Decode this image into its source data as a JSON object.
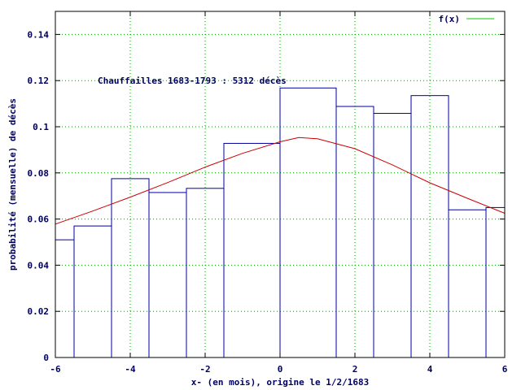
{
  "chart_data": {
    "type": "bar",
    "annotation": "Chauffailles 1683-1793 : 5312 décès",
    "xlabel": "x- (en mois), origine le 1/2/1683",
    "ylabel": "probabilité (mensuelle) de décès",
    "xlim": [
      -6,
      6
    ],
    "ylim": [
      0,
      0.15
    ],
    "x_ticks": [
      -6,
      -4,
      -2,
      0,
      2,
      4,
      6
    ],
    "y_ticks": [
      0,
      0.02,
      0.04,
      0.06,
      0.08,
      0.1,
      0.12,
      0.14
    ],
    "grid": true,
    "legend_position": "top-right",
    "bars": [
      {
        "x0": -6.0,
        "x1": -5.5,
        "value": 0.051
      },
      {
        "x0": -5.5,
        "x1": -4.5,
        "value": 0.057
      },
      {
        "x0": -4.5,
        "x1": -3.5,
        "value": 0.0775
      },
      {
        "x0": -3.5,
        "x1": -2.5,
        "value": 0.0715
      },
      {
        "x0": -2.5,
        "x1": -1.5,
        "value": 0.0733
      },
      {
        "x0": -1.5,
        "x1": 0.0,
        "value": 0.0928
      },
      {
        "x0": 0.0,
        "x1": 1.5,
        "value": 0.1168
      },
      {
        "x0": 1.5,
        "x1": 2.5,
        "value": 0.1088
      },
      {
        "x0": 2.5,
        "x1": 3.5,
        "value": 0.1058
      },
      {
        "x0": 3.5,
        "x1": 4.5,
        "value": 0.1135
      },
      {
        "x0": 4.5,
        "x1": 5.5,
        "value": 0.064
      },
      {
        "x0": 5.5,
        "x1": 6.0,
        "value": 0.065
      }
    ],
    "curve": {
      "name": "f(x)",
      "x": [
        -6,
        -5,
        -4,
        -3,
        -2,
        -1,
        0,
        0.5,
        1,
        2,
        3,
        4,
        5,
        6
      ],
      "y": [
        0.0578,
        0.0635,
        0.0695,
        0.0758,
        0.0825,
        0.0885,
        0.0935,
        0.0953,
        0.0948,
        0.0905,
        0.0835,
        0.0757,
        0.069,
        0.0625
      ]
    },
    "colors": {
      "bars": "#0000a0",
      "curve": "#cc0000",
      "grid": "#00a000",
      "text": "#000060",
      "axes": "#000000"
    }
  }
}
